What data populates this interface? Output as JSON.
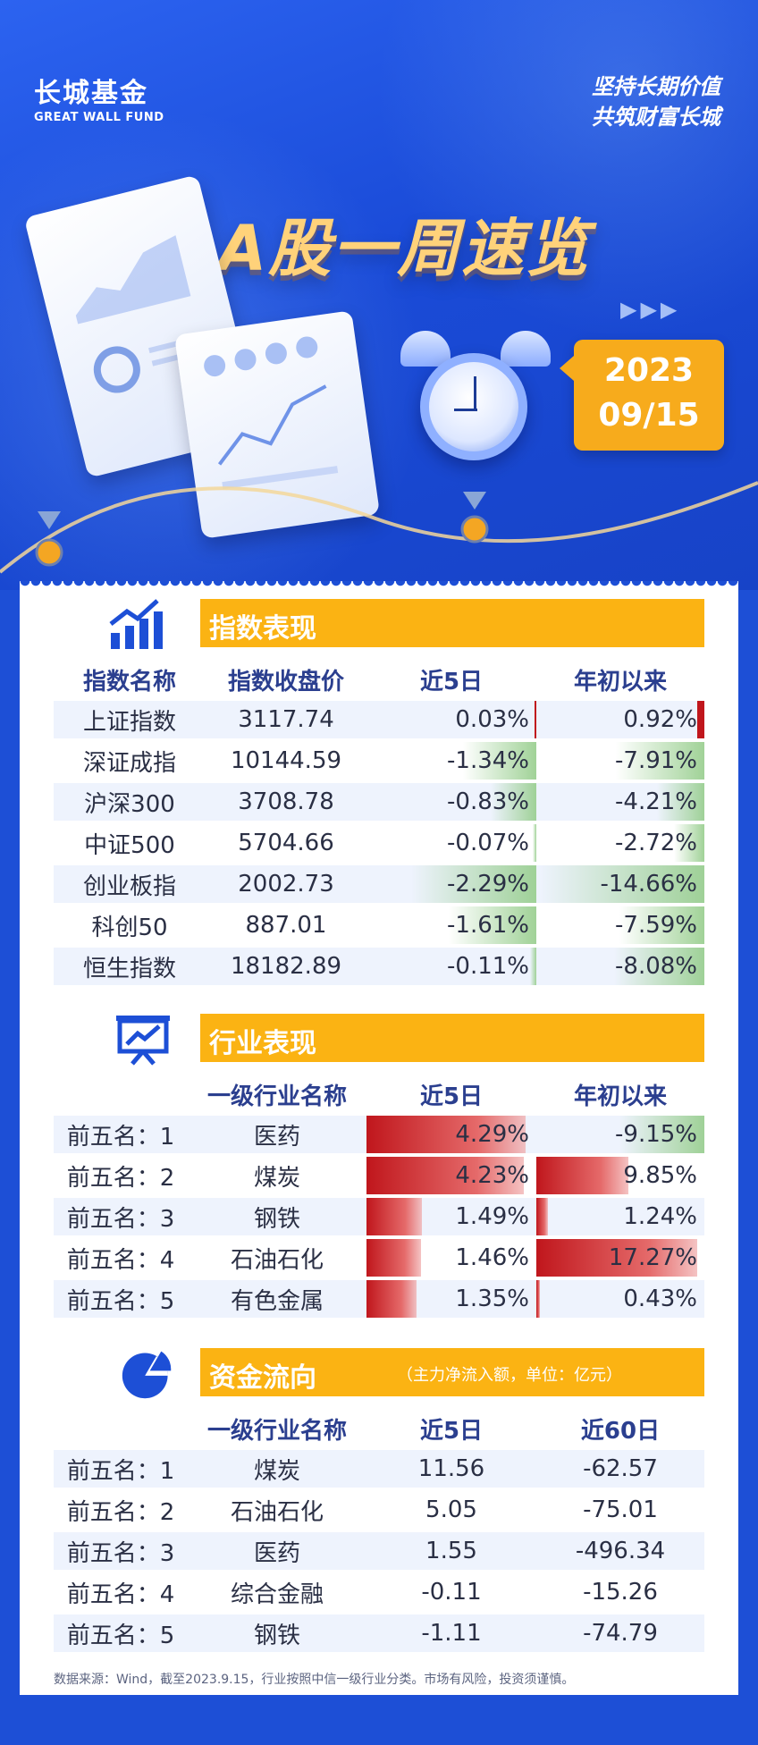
{
  "header": {
    "logo_cn": "长城基金",
    "logo_en": "GREAT WALL FUND",
    "slogan_line1": "坚持长期价值",
    "slogan_line2": "共筑财富长城",
    "title": "A股一周速览",
    "date_year": "2023",
    "date_day": "09/15"
  },
  "index_section": {
    "title": "指数表现",
    "columns": [
      "指数名称",
      "指数收盘价",
      "近5日",
      "年初以来"
    ],
    "rows": [
      {
        "name": "上证指数",
        "close": "3117.74",
        "d5": "0.03%",
        "d5_val": 0.03,
        "ytd": "0.92%",
        "ytd_val": 0.92
      },
      {
        "name": "深证成指",
        "close": "10144.59",
        "d5": "-1.34%",
        "d5_val": -1.34,
        "ytd": "-7.91%",
        "ytd_val": -7.91
      },
      {
        "name": "沪深300",
        "close": "3708.78",
        "d5": "-0.83%",
        "d5_val": -0.83,
        "ytd": "-4.21%",
        "ytd_val": -4.21
      },
      {
        "name": "中证500",
        "close": "5704.66",
        "d5": "-0.07%",
        "d5_val": -0.07,
        "ytd": "-2.72%",
        "ytd_val": -2.72
      },
      {
        "name": "创业板指",
        "close": "2002.73",
        "d5": "-2.29%",
        "d5_val": -2.29,
        "ytd": "-14.66%",
        "ytd_val": -14.66
      },
      {
        "name": "科创50",
        "close": "887.01",
        "d5": "-1.61%",
        "d5_val": -1.61,
        "ytd": "-7.59%",
        "ytd_val": -7.59
      },
      {
        "name": "恒生指数",
        "close": "18182.89",
        "d5": "-0.11%",
        "d5_val": -0.11,
        "ytd": "-8.08%",
        "ytd_val": -8.08
      }
    ]
  },
  "industry_section": {
    "title": "行业表现",
    "columns": [
      "",
      "一级行业名称",
      "近5日",
      "年初以来"
    ],
    "rows": [
      {
        "rank": "前五名：1",
        "name": "医药",
        "d5": "4.29%",
        "d5_val": 4.29,
        "ytd": "-9.15%",
        "ytd_val": -9.15
      },
      {
        "rank": "前五名：2",
        "name": "煤炭",
        "d5": "4.23%",
        "d5_val": 4.23,
        "ytd": "9.85%",
        "ytd_val": 9.85
      },
      {
        "rank": "前五名：3",
        "name": "钢铁",
        "d5": "1.49%",
        "d5_val": 1.49,
        "ytd": "1.24%",
        "ytd_val": 1.24
      },
      {
        "rank": "前五名：4",
        "name": "石油石化",
        "d5": "1.46%",
        "d5_val": 1.46,
        "ytd": "17.27%",
        "ytd_val": 17.27
      },
      {
        "rank": "前五名：5",
        "name": "有色金属",
        "d5": "1.35%",
        "d5_val": 1.35,
        "ytd": "0.43%",
        "ytd_val": 0.43
      }
    ]
  },
  "fund_section": {
    "title": "资金流向",
    "note": "（主力净流入额，单位：亿元）",
    "columns": [
      "",
      "一级行业名称",
      "近5日",
      "近60日"
    ],
    "rows": [
      {
        "rank": "前五名：1",
        "name": "煤炭",
        "d5": "11.56",
        "d60": "-62.57"
      },
      {
        "rank": "前五名：2",
        "name": "石油石化",
        "d5": "5.05",
        "d60": "-75.01"
      },
      {
        "rank": "前五名：3",
        "name": "医药",
        "d5": "1.55",
        "d60": "-496.34"
      },
      {
        "rank": "前五名：4",
        "name": "综合金融",
        "d5": "-0.11",
        "d60": "-15.26"
      },
      {
        "rank": "前五名：5",
        "name": "钢铁",
        "d5": "-1.11",
        "d60": "-74.79"
      }
    ]
  },
  "footer": "数据来源：Wind，截至2023.9.15，行业按照中信一级行业分类。市场有风险，投资须谨慎。"
}
